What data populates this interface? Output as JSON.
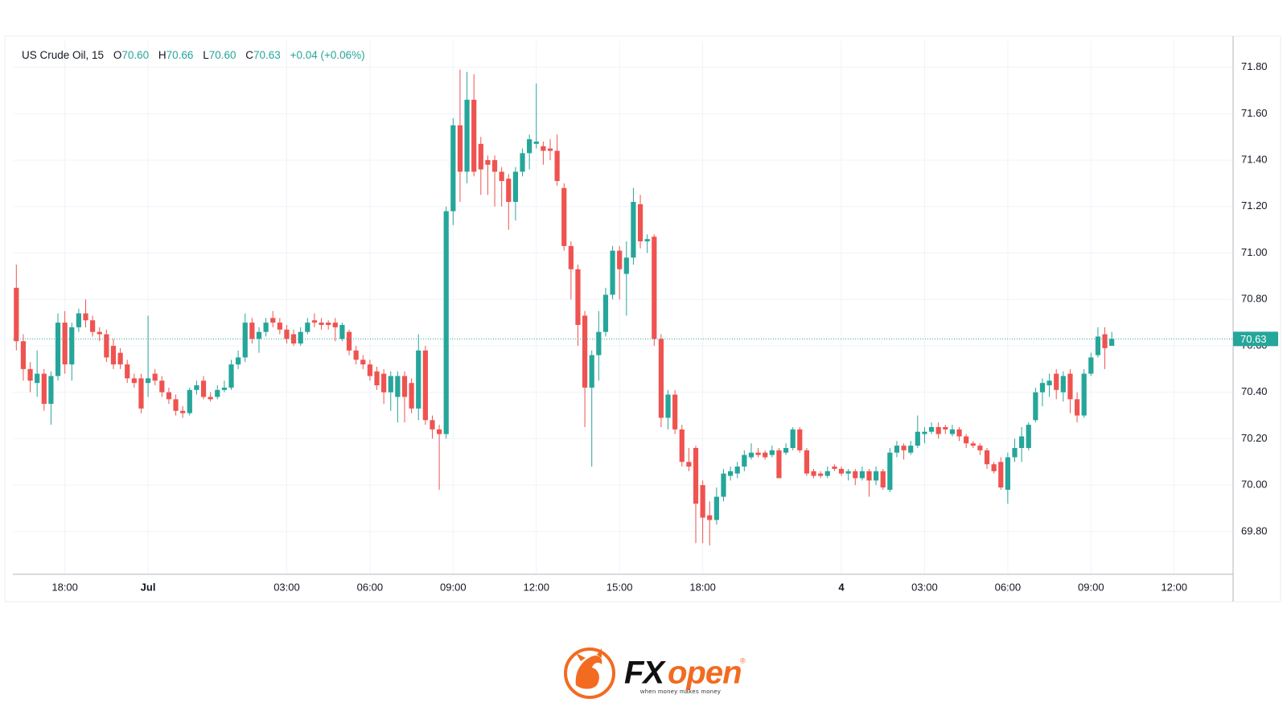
{
  "chart_data": {
    "type": "candlestick",
    "header": {
      "title": "US Crude Oil, 15",
      "open_label": "O",
      "open": "70.60",
      "high_label": "H",
      "high": "70.66",
      "low_label": "L",
      "low": "70.60",
      "close_label": "C",
      "close": "70.63",
      "change": "+0.04 (+0.06%)"
    },
    "up_color": "#26a69a",
    "down_color": "#ef5350",
    "grid": true,
    "categories": [
      null,
      null,
      null,
      null,
      null,
      null,
      null,
      "18:00",
      null,
      null,
      null,
      null,
      null,
      null,
      null,
      null,
      null,
      null,
      null,
      "Jul",
      null,
      null,
      null,
      null,
      null,
      null,
      null,
      null,
      null,
      null,
      null,
      null,
      null,
      null,
      null,
      null,
      null,
      null,
      null,
      "03:00",
      null,
      null,
      null,
      null,
      null,
      null,
      null,
      null,
      null,
      null,
      null,
      "06:00",
      null,
      null,
      null,
      null,
      null,
      null,
      null,
      null,
      null,
      null,
      null,
      "09:00",
      null,
      null,
      null,
      null,
      null,
      null,
      null,
      null,
      null,
      null,
      null,
      "12:00",
      null,
      null,
      null,
      null,
      null,
      null,
      null,
      null,
      null,
      null,
      null,
      "15:00",
      null,
      null,
      null,
      null,
      null,
      null,
      null,
      null,
      null,
      null,
      null,
      "18:00",
      null,
      null,
      null,
      null,
      null,
      null,
      null,
      null,
      null,
      null,
      null,
      null,
      null,
      null,
      null,
      null,
      null,
      null,
      null,
      "4",
      null,
      null,
      null,
      null,
      null,
      null,
      null,
      null,
      null,
      null,
      null,
      "03:00",
      null,
      null,
      null,
      null,
      null,
      null,
      null,
      null,
      null,
      null,
      null,
      "06:00",
      null,
      null,
      null,
      null,
      null,
      null,
      null,
      null,
      null,
      null,
      null,
      "09:00",
      null,
      null,
      null,
      null,
      null,
      null,
      null,
      null,
      null,
      null,
      null,
      "12:00",
      null,
      null,
      null,
      null,
      null,
      null,
      null,
      null
    ],
    "open": [
      70.85,
      70.62,
      70.5,
      70.44,
      70.48,
      70.35,
      70.47,
      70.7,
      70.52,
      70.68,
      70.74,
      70.71,
      70.66,
      70.65,
      70.6,
      70.57,
      70.52,
      70.46,
      70.46,
      70.44,
      70.48,
      70.45,
      70.4,
      70.37,
      70.32,
      70.31,
      70.41,
      70.45,
      70.38,
      70.38,
      70.41,
      70.42,
      70.52,
      70.55,
      70.7,
      70.63,
      70.66,
      70.72,
      70.7,
      70.67,
      70.65,
      70.61,
      70.66,
      70.71,
      70.7,
      70.7,
      70.7,
      70.63,
      70.66,
      70.58,
      70.54,
      70.52,
      70.49,
      70.48,
      70.4,
      70.38,
      70.47,
      70.44,
      70.33,
      70.58,
      70.28,
      70.24,
      70.22,
      71.18,
      71.55,
      71.35,
      71.66,
      71.47,
      71.4,
      71.4,
      71.35,
      71.32,
      71.22,
      71.35,
      71.43,
      71.47,
      71.46,
      71.45,
      71.44,
      71.28,
      71.03,
      70.93,
      70.73,
      70.42,
      70.56,
      70.66,
      70.82,
      71.01,
      70.91,
      70.98,
      71.21,
      71.05,
      71.07,
      70.63,
      70.29,
      70.39,
      70.24,
      70.1,
      70.16,
      70.0,
      69.87,
      69.85,
      69.95,
      70.04,
      70.05,
      70.08,
      70.12,
      70.14,
      70.14,
      70.13,
      70.15,
      70.14,
      70.16,
      70.24,
      70.15,
      70.06,
      70.05,
      70.04,
      70.08,
      70.07,
      70.05,
      70.06,
      70.03,
      70.06,
      70.02,
      70.06,
      69.98,
      70.14,
      70.17,
      70.14,
      70.17,
      70.22,
      70.23,
      70.25,
      70.25,
      70.22,
      70.24,
      70.21,
      70.18,
      70.17,
      70.15,
      70.09,
      70.1,
      69.98,
      70.12,
      70.16,
      70.16,
      70.28,
      70.4,
      70.43,
      70.48,
      70.4,
      70.48,
      70.37,
      70.3,
      70.48,
      70.56,
      70.65,
      70.6,
      null,
      null,
      null,
      null,
      null,
      null,
      null,
      null,
      null,
      null,
      null,
      null,
      null,
      null,
      null,
      null,
      null
    ],
    "high": [
      70.95,
      70.65,
      70.53,
      70.58,
      70.5,
      70.49,
      70.74,
      70.75,
      70.7,
      70.76,
      70.8,
      70.73,
      70.68,
      70.67,
      70.63,
      70.59,
      70.54,
      70.48,
      70.48,
      70.73,
      70.5,
      70.47,
      70.42,
      70.39,
      70.34,
      70.42,
      70.45,
      70.47,
      70.4,
      70.43,
      70.45,
      70.54,
      70.58,
      70.74,
      70.72,
      70.68,
      70.72,
      70.75,
      70.72,
      70.69,
      70.67,
      70.68,
      70.72,
      70.74,
      70.72,
      70.71,
      70.72,
      70.7,
      70.67,
      70.6,
      70.56,
      70.54,
      70.51,
      70.5,
      70.49,
      70.49,
      70.49,
      70.46,
      70.65,
      70.6,
      70.3,
      70.26,
      71.2,
      71.58,
      71.79,
      71.78,
      71.77,
      71.5,
      71.42,
      71.42,
      71.37,
      71.34,
      71.37,
      71.45,
      71.51,
      71.73,
      71.48,
      71.49,
      71.51,
      71.3,
      71.05,
      70.95,
      70.75,
      70.58,
      70.75,
      70.85,
      71.03,
      71.03,
      71.05,
      71.28,
      71.25,
      71.08,
      71.08,
      70.65,
      70.41,
      70.41,
      70.26,
      70.16,
      70.17,
      70.02,
      69.93,
      69.99,
      70.07,
      70.08,
      70.1,
      70.15,
      70.18,
      70.16,
      70.15,
      70.17,
      70.16,
      70.18,
      70.25,
      70.25,
      70.16,
      70.07,
      70.06,
      70.08,
      70.09,
      70.08,
      70.07,
      70.07,
      70.08,
      70.07,
      70.08,
      70.07,
      70.16,
      70.19,
      70.18,
      70.19,
      70.3,
      70.25,
      70.27,
      70.27,
      70.26,
      70.26,
      70.25,
      70.22,
      70.19,
      70.18,
      70.16,
      70.1,
      70.12,
      70.14,
      70.2,
      70.25,
      70.27,
      70.42,
      70.46,
      70.48,
      70.5,
      70.49,
      70.5,
      70.4,
      70.5,
      70.57,
      70.68,
      70.68,
      70.66,
      null,
      null,
      null,
      null,
      null,
      null,
      null,
      null,
      null,
      null,
      null,
      null,
      null,
      null,
      null,
      null,
      null
    ],
    "low": [
      70.58,
      70.45,
      70.4,
      70.38,
      70.32,
      70.26,
      70.45,
      70.48,
      70.45,
      70.66,
      70.68,
      70.64,
      70.62,
      70.53,
      70.5,
      70.5,
      70.44,
      70.42,
      70.31,
      70.38,
      70.43,
      70.38,
      70.35,
      70.3,
      70.29,
      70.3,
      70.39,
      70.37,
      70.36,
      70.37,
      70.4,
      70.41,
      70.5,
      70.53,
      70.61,
      70.57,
      70.64,
      70.68,
      70.65,
      70.61,
      70.6,
      70.6,
      70.65,
      70.68,
      70.67,
      70.67,
      70.62,
      70.62,
      70.56,
      70.52,
      70.5,
      70.45,
      70.41,
      70.35,
      70.32,
      70.27,
      70.27,
      70.31,
      70.28,
      70.26,
      70.2,
      69.98,
      70.2,
      71.12,
      71.22,
      71.3,
      71.33,
      71.25,
      71.25,
      71.2,
      71.2,
      71.1,
      71.14,
      71.33,
      71.36,
      71.45,
      71.38,
      71.4,
      71.29,
      71.01,
      70.8,
      70.6,
      70.25,
      70.08,
      70.45,
      70.64,
      70.8,
      70.8,
      70.73,
      70.95,
      71.02,
      71.0,
      70.6,
      70.25,
      70.24,
      70.22,
      70.08,
      70.06,
      69.75,
      69.75,
      69.74,
      69.83,
      69.93,
      70.02,
      70.03,
      70.06,
      70.11,
      70.12,
      70.11,
      70.12,
      70.03,
      70.13,
      70.15,
      70.14,
      70.04,
      70.03,
      70.03,
      70.03,
      70.06,
      70.04,
      70.02,
      70.0,
      70.02,
      69.95,
      70.0,
      69.98,
      69.97,
      70.12,
      70.11,
      70.13,
      70.16,
      70.18,
      70.22,
      70.2,
      70.22,
      70.21,
      70.19,
      70.16,
      70.16,
      70.13,
      70.07,
      70.05,
      69.98,
      69.92,
      70.1,
      70.1,
      70.15,
      70.27,
      70.34,
      70.38,
      70.37,
      70.36,
      70.31,
      70.27,
      70.29,
      70.47,
      70.55,
      70.5,
      70.6,
      null,
      null,
      null,
      null,
      null,
      null,
      null,
      null,
      null,
      null,
      null,
      null,
      null,
      null,
      null,
      null,
      null
    ],
    "close": [
      70.62,
      70.5,
      70.45,
      70.48,
      70.35,
      70.47,
      70.7,
      70.52,
      70.68,
      70.74,
      70.71,
      70.66,
      70.65,
      70.55,
      70.52,
      70.52,
      70.46,
      70.44,
      70.33,
      70.46,
      70.45,
      70.4,
      70.37,
      70.32,
      70.31,
      70.41,
      70.43,
      70.38,
      70.37,
      70.41,
      70.42,
      70.52,
      70.55,
      70.7,
      70.63,
      70.66,
      70.7,
      70.7,
      70.67,
      70.63,
      70.61,
      70.66,
      70.7,
      70.7,
      70.69,
      70.69,
      70.68,
      70.69,
      70.58,
      70.54,
      70.52,
      70.47,
      70.43,
      70.4,
      70.47,
      70.47,
      70.38,
      70.33,
      70.58,
      70.28,
      70.24,
      70.22,
      71.18,
      71.55,
      71.35,
      71.66,
      71.35,
      71.36,
      71.38,
      71.35,
      71.31,
      71.22,
      71.35,
      71.43,
      71.49,
      71.48,
      71.44,
      71.44,
      71.31,
      71.03,
      70.93,
      70.69,
      70.42,
      70.56,
      70.66,
      70.82,
      71.01,
      70.93,
      70.98,
      71.22,
      71.05,
      71.06,
      70.63,
      70.29,
      70.39,
      70.24,
      70.1,
      70.08,
      69.92,
      69.86,
      69.85,
      69.95,
      70.05,
      70.06,
      70.08,
      70.13,
      70.14,
      70.13,
      70.12,
      70.15,
      70.03,
      70.16,
      70.24,
      70.15,
      70.05,
      70.04,
      70.04,
      70.06,
      70.07,
      70.05,
      70.06,
      70.03,
      70.06,
      70.02,
      70.06,
      69.99,
      70.14,
      70.17,
      70.15,
      70.17,
      70.23,
      70.23,
      70.25,
      70.22,
      70.24,
      70.24,
      70.21,
      70.18,
      70.17,
      70.15,
      70.09,
      70.06,
      69.99,
      70.12,
      70.16,
      70.21,
      70.26,
      70.4,
      70.44,
      70.45,
      70.41,
      70.47,
      70.37,
      70.3,
      70.48,
      70.55,
      70.64,
      70.59,
      70.63,
      null,
      null,
      null,
      null,
      null,
      null,
      null,
      null,
      null,
      null,
      null,
      null,
      null,
      null,
      null,
      null,
      null
    ],
    "ylim": [
      69.616,
      71.913
    ],
    "yticks": [
      {
        "value": 69.8,
        "label": "69.80"
      },
      {
        "value": 70.0,
        "label": "70.00"
      },
      {
        "value": 70.2,
        "label": "70.20"
      },
      {
        "value": 70.4,
        "label": "70.40"
      },
      {
        "value": 70.6,
        "label": "70.60"
      },
      {
        "value": 70.8,
        "label": "70.80"
      },
      {
        "value": 71.0,
        "label": "71.00"
      },
      {
        "value": 71.2,
        "label": "71.20"
      },
      {
        "value": 71.4,
        "label": "71.40"
      },
      {
        "value": 71.6,
        "label": "71.60"
      },
      {
        "value": 71.8,
        "label": "71.80"
      }
    ],
    "last_price": {
      "value": 70.63,
      "label": "70.63"
    }
  },
  "logo": {
    "brand_prefix": "FX",
    "brand_suffix": "open",
    "registered": "®",
    "tagline": "when money makes money"
  }
}
